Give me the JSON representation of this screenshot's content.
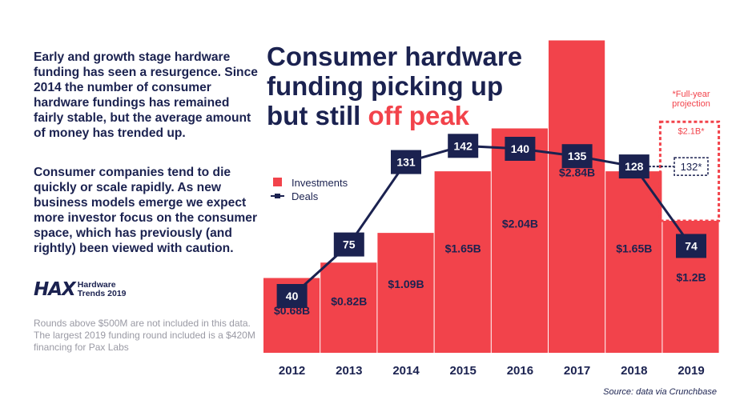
{
  "left_text": {
    "paragraph_1": "Early and growth stage hardware funding has seen a resurgence. Since 2014 the number of consumer hardware fundings has remained fairly stable, but the average amount of money has trended up.",
    "paragraph_2": "Consumer companies tend to die quickly or scale rapidly. As new business models emerge we expect more investor focus on the consumer space, which has previously (and rightly) been viewed with caution."
  },
  "logo": {
    "mark": "HAX",
    "line1": "Hardware",
    "line2": "Trends 2019"
  },
  "footnote": "Rounds above $500M are not included in this data. The largest 2019 funding round included is a $420M financing for Pax Labs",
  "title": {
    "line1": "Consumer hardware",
    "line2": "funding picking up",
    "line3_prefix": "but still ",
    "line3_highlight": "off peak"
  },
  "source": "Source: data via Crunchbase",
  "colors": {
    "investments": "#f2434b",
    "deals": "#1b2250",
    "text": "#1b2250"
  },
  "chart_data": {
    "type": "bar",
    "categories": [
      "2012",
      "2013",
      "2014",
      "2015",
      "2016",
      "2017",
      "2018",
      "2019"
    ],
    "series": [
      {
        "name": "Investments",
        "values": [
          0.68,
          0.82,
          1.09,
          1.65,
          2.04,
          2.84,
          1.65,
          1.2
        ],
        "labels": [
          "$0.68B",
          "$0.82B",
          "$1.09B",
          "$1.65B",
          "$2.04B",
          "$2.84B",
          "$1.65B",
          "$1.2B"
        ]
      },
      {
        "name": "Deals",
        "type": "line",
        "values": [
          40,
          75,
          131,
          142,
          140,
          135,
          128,
          74
        ]
      }
    ],
    "projection": {
      "label": "*Full-year projection",
      "category": "2019",
      "investments_label": "$2.1B*",
      "investments_value": 2.1,
      "deals_label": "132*",
      "deals_value": 132
    },
    "legend": {
      "position": "left-middle",
      "entries": [
        "Investments",
        "Deals"
      ]
    }
  }
}
